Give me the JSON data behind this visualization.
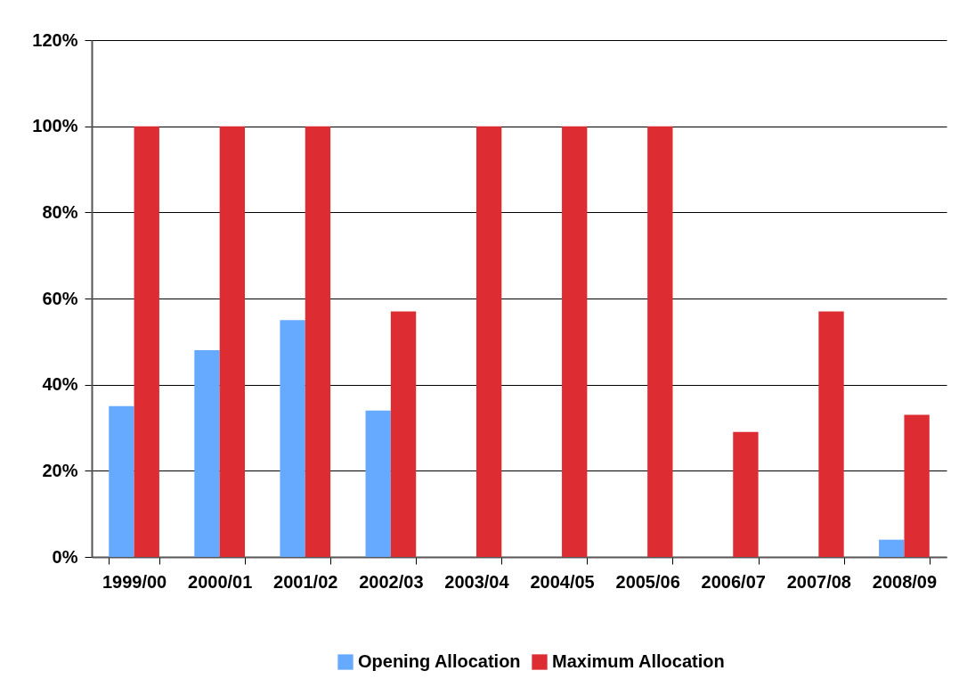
{
  "chart_data": {
    "type": "bar",
    "categories": [
      "1999/00",
      "2000/01",
      "2001/02",
      "2002/03",
      "2003/04",
      "2004/05",
      "2005/06",
      "2006/07",
      "2007/08",
      "2008/09"
    ],
    "series": [
      {
        "name": "Opening Allocation",
        "color": "#66aaff",
        "values": [
          35,
          48,
          55,
          34,
          0,
          0,
          0,
          0,
          0,
          4
        ]
      },
      {
        "name": "Maximum Allocation",
        "color": "#dd2d33",
        "values": [
          100,
          100,
          100,
          57,
          100,
          100,
          100,
          29,
          57,
          33
        ]
      }
    ],
    "ylim": [
      0,
      120
    ],
    "yticks": [
      {
        "value": 0,
        "label": "0%"
      },
      {
        "value": 20,
        "label": "20%"
      },
      {
        "value": 40,
        "label": "40%"
      },
      {
        "value": 60,
        "label": "60%"
      },
      {
        "value": 80,
        "label": "80%"
      },
      {
        "value": 100,
        "label": "100%"
      },
      {
        "value": 120,
        "label": "120%"
      }
    ],
    "grid": "y",
    "legend": "bottom"
  }
}
